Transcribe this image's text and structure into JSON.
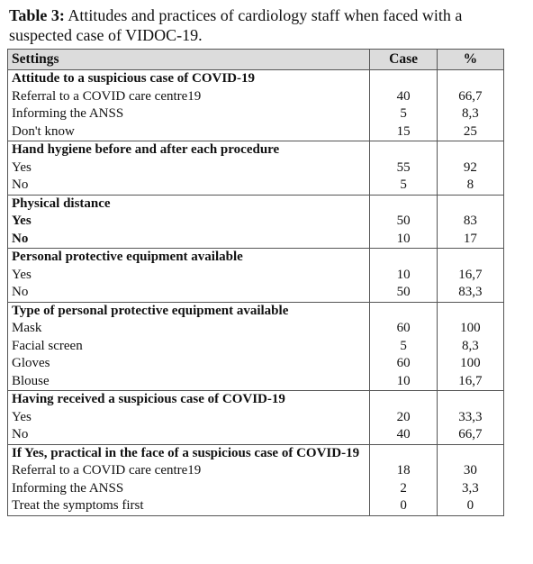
{
  "caption": {
    "label": "Table 3:",
    "text": " Attitudes and practices of cardiology staff when faced with a suspected case of VIDOC-19."
  },
  "headers": {
    "settings": "Settings",
    "case": "Case",
    "percent": "%"
  },
  "groups": [
    {
      "heading": "Attitude to a suspicious case of COVID-19",
      "rows": [
        {
          "label": "Referral to a COVID care centre19",
          "case": "40",
          "pct": "66,7"
        },
        {
          "label": "Informing the ANSS",
          "case": "5",
          "pct": "8,3"
        },
        {
          "label": "Don't know",
          "case": "15",
          "pct": "25"
        }
      ]
    },
    {
      "heading": "Hand hygiene before and after each procedure",
      "rows": [
        {
          "label": "Yes",
          "case": "55",
          "pct": "92"
        },
        {
          "label": "No",
          "case": "5",
          "pct": "8"
        }
      ]
    },
    {
      "heading": "Physical distance",
      "rows": [
        {
          "label": "Yes",
          "case": "50",
          "pct": "83"
        },
        {
          "label": "No",
          "case": "10",
          "pct": "17"
        }
      ]
    },
    {
      "heading": "Personal protective equipment available",
      "rows": [
        {
          "label": "Yes",
          "case": "10",
          "pct": "16,7"
        },
        {
          "label": "No",
          "case": "50",
          "pct": "83,3"
        }
      ]
    },
    {
      "heading": "Type of personal protective equipment available",
      "rows": [
        {
          "label": "Mask",
          "case": "60",
          "pct": "100"
        },
        {
          "label": "Facial screen",
          "case": "5",
          "pct": "8,3"
        },
        {
          "label": "Gloves",
          "case": "60",
          "pct": "100"
        },
        {
          "label": "Blouse",
          "case": "10",
          "pct": "16,7"
        }
      ]
    },
    {
      "heading": "Having received a suspicious case of COVID-19",
      "rows": [
        {
          "label": "Yes",
          "case": "20",
          "pct": "33,3"
        },
        {
          "label": "No",
          "case": "40",
          "pct": "66,7"
        }
      ]
    },
    {
      "heading": "If Yes, practical in the face of a suspicious case of COVID-19",
      "rows": [
        {
          "label": "Referral to a COVID care centre19",
          "case": "18",
          "pct": "30"
        },
        {
          "label": "Informing the ANSS",
          "case": "2",
          "pct": "3,3"
        },
        {
          "label": "Treat the symptoms first",
          "case": "0",
          "pct": "0"
        }
      ]
    }
  ]
}
